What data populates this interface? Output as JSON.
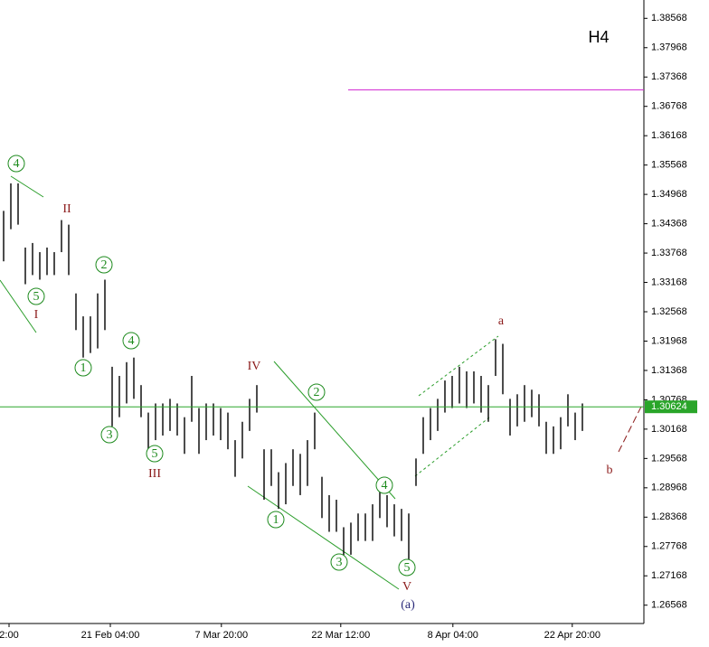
{
  "chart_data": {
    "type": "ohlc",
    "timeframe": "H4",
    "current_price": 1.30624,
    "target_level": 1.37106,
    "ylim": [
      1.26193,
      1.38943
    ],
    "yticks": [
      1.38568,
      1.37968,
      1.37368,
      1.36768,
      1.36168,
      1.35568,
      1.34968,
      1.34368,
      1.33768,
      1.33168,
      1.32568,
      1.31968,
      1.31368,
      1.30768,
      1.30168,
      1.29568,
      1.28968,
      1.28368,
      1.27768,
      1.27168,
      1.26568
    ],
    "xlim": [
      -0.5,
      88.5
    ],
    "xticks": [
      {
        "value": 0.75,
        "label": "2:00"
      },
      {
        "value": 14.75,
        "label": "21 Feb 04:00"
      },
      {
        "value": 30.1,
        "label": "7 Mar 20:00"
      },
      {
        "value": 46.6,
        "label": "22 Mar 12:00"
      },
      {
        "value": 62.1,
        "label": "8 Apr 04:00"
      },
      {
        "value": 78.6,
        "label": "22 Apr 20:00"
      }
    ],
    "low": [
      1.33599,
      1.34256,
      1.34349,
      1.33131,
      1.33318,
      1.33224,
      1.33318,
      1.33318,
      1.33787,
      1.33318,
      1.32193,
      1.31631,
      1.31724,
      1.31818,
      1.32193,
      1.30224,
      1.30412,
      1.30693,
      1.30787,
      1.30412,
      1.29756,
      1.29943,
      1.30037,
      1.30131,
      1.30037,
      1.29662,
      1.30318,
      1.29662,
      1.29943,
      1.30037,
      1.29943,
      1.29756,
      1.29193,
      1.29568,
      1.30131,
      1.30506,
      1.28724,
      1.29006,
      1.28537,
      1.28631,
      1.29006,
      1.28818,
      1.29006,
      1.29756,
      1.28349,
      1.28068,
      1.28068,
      1.27506,
      1.27599,
      1.27881,
      1.27881,
      1.27881,
      1.28349,
      1.28162,
      1.27974,
      1.27881,
      1.27412,
      1.29006,
      1.29662,
      1.29943,
      1.30131,
      1.30506,
      1.30599,
      1.30693,
      1.30599,
      1.30693,
      1.30506,
      1.30318,
      1.31256,
      1.30881,
      1.30037,
      1.30224,
      1.30318,
      1.30412,
      1.30224,
      1.29662,
      1.29662,
      1.29756,
      1.30224,
      1.29943,
      1.30131
    ],
    "high": [
      1.34631,
      1.35193,
      1.35193,
      1.33881,
      1.33974,
      1.33787,
      1.33881,
      1.33787,
      1.34443,
      1.34349,
      1.32943,
      1.32474,
      1.32474,
      1.32943,
      1.33224,
      1.31443,
      1.31256,
      1.31537,
      1.31631,
      1.31068,
      1.30506,
      1.30693,
      1.30693,
      1.30787,
      1.30693,
      1.30412,
      1.31256,
      1.30599,
      1.30693,
      1.30693,
      1.30599,
      1.30506,
      1.29943,
      1.30318,
      1.30787,
      1.31068,
      1.29756,
      1.29756,
      1.29287,
      1.29474,
      1.29756,
      1.29662,
      1.29943,
      1.30506,
      1.29193,
      1.28818,
      1.28724,
      1.28162,
      1.28256,
      1.28443,
      1.28443,
      1.28631,
      1.28912,
      1.28818,
      1.28631,
      1.28537,
      1.28443,
      1.29568,
      1.30412,
      1.30599,
      1.30787,
      1.31162,
      1.31256,
      1.31443,
      1.31349,
      1.31349,
      1.31256,
      1.31068,
      1.32006,
      1.31912,
      1.30787,
      1.30881,
      1.31068,
      1.30974,
      1.30881,
      1.30318,
      1.30224,
      1.30412,
      1.30881,
      1.30506,
      1.30693
    ],
    "wave_labels": [
      "4",
      "II",
      "2",
      "5",
      "I",
      "1",
      "4",
      "3",
      "5",
      "III",
      "IV",
      "2",
      "1",
      "4",
      "3",
      "5",
      "V",
      "(a)",
      "a",
      "b"
    ]
  }
}
